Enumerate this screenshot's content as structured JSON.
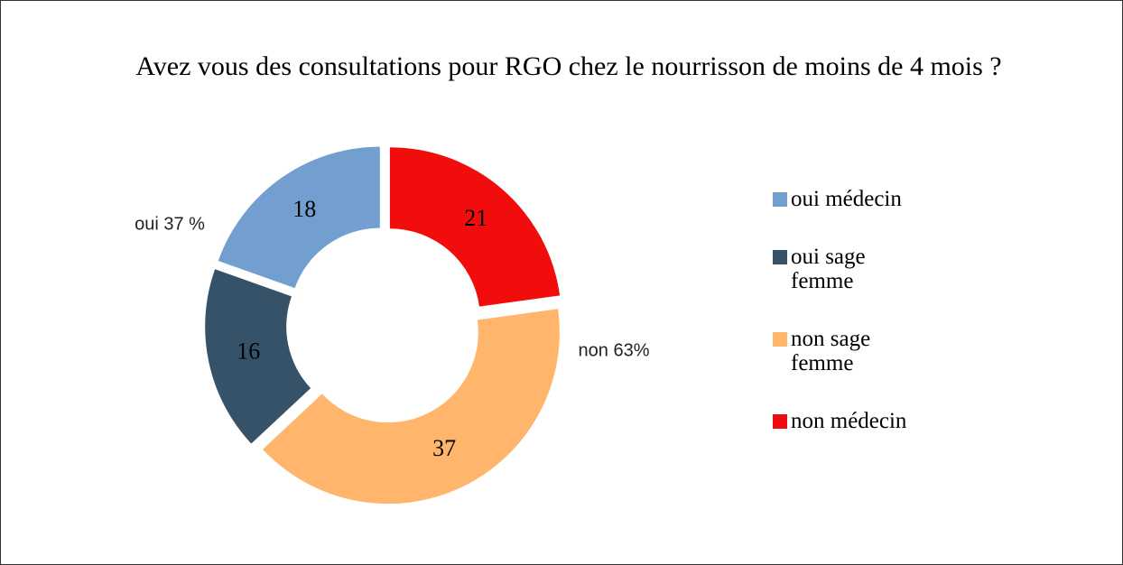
{
  "chart_data": {
    "type": "donut",
    "title": "Avez vous des consultations pour RGO chez le nourrisson de moins de 4 mois ?",
    "categories": [
      "oui médecin",
      "oui sage femme",
      "non sage femme",
      "non médecin"
    ],
    "values": [
      18,
      16,
      37,
      21
    ],
    "colors": [
      "#729fcf",
      "#355269",
      "#ffb56b",
      "#f10d0c"
    ],
    "annotations": [
      "oui 37 %",
      "non 63%"
    ],
    "legend": "right"
  }
}
